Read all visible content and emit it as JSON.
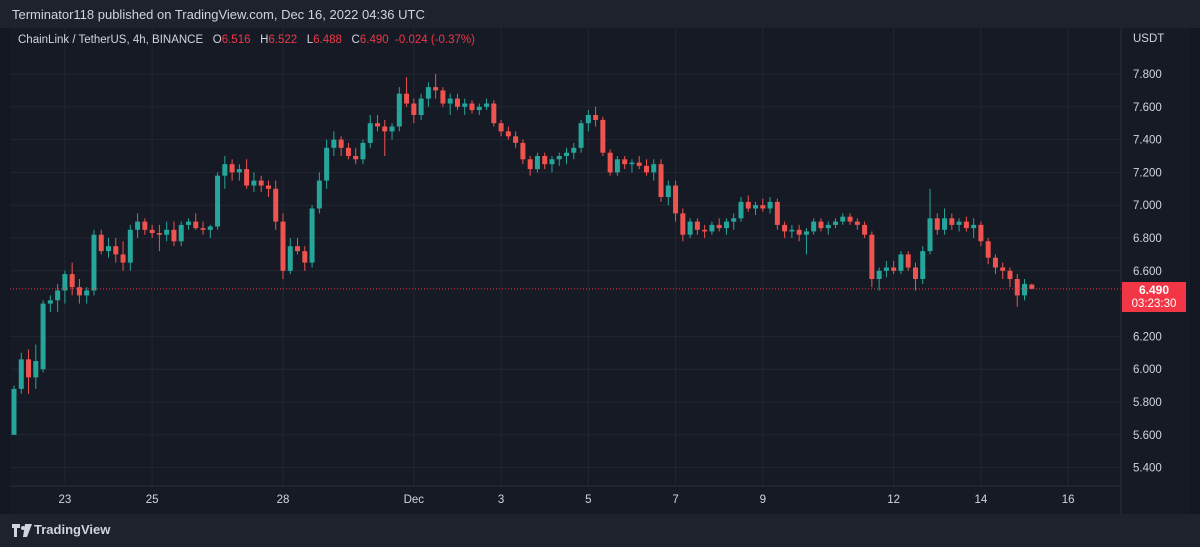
{
  "header": {
    "published": "Terminator118 published on TradingView.com, Dec 16, 2022 04:36 UTC"
  },
  "legend": {
    "symbol": "ChainLink / TetherUS, 4h, BINANCE",
    "o_label": "O",
    "o_value": "6.516",
    "h_label": "H",
    "h_value": "6.522",
    "l_label": "L",
    "l_value": "6.488",
    "c_label": "C",
    "c_value": "6.490",
    "change": "-0.024 (-0.37%)"
  },
  "price_badge": {
    "price": "6.490",
    "countdown": "03:23:30"
  },
  "footer": {
    "brand": "TradingView"
  },
  "colors": {
    "up": "#26a69a",
    "down": "#ef5350",
    "background": "#161a25",
    "grid": "#222633",
    "badge": "#f23645"
  },
  "chart_data": {
    "type": "candlestick",
    "title": "ChainLink / TetherUS, 4h, BINANCE",
    "ylabel": "USDT",
    "ylim": [
      5.3,
      7.95
    ],
    "y_ticks": [
      "7.800",
      "7.600",
      "7.400",
      "7.200",
      "7.000",
      "6.800",
      "6.600",
      "6.200",
      "6.000",
      "5.800",
      "5.600",
      "5.400"
    ],
    "x_tick_labels": [
      {
        "label": "23",
        "index": 7
      },
      {
        "label": "25",
        "index": 19
      },
      {
        "label": "28",
        "index": 37
      },
      {
        "label": "Dec",
        "index": 55
      },
      {
        "label": "3",
        "index": 67
      },
      {
        "label": "5",
        "index": 79
      },
      {
        "label": "7",
        "index": 91
      },
      {
        "label": "9",
        "index": 103
      },
      {
        "label": "12",
        "index": 121
      },
      {
        "label": "14",
        "index": 133
      },
      {
        "label": "16",
        "index": 145
      }
    ],
    "last_price": 6.49,
    "candles": [
      [
        5.6,
        5.9,
        5.6,
        5.88
      ],
      [
        5.88,
        6.1,
        5.85,
        6.06
      ],
      [
        6.06,
        6.12,
        5.85,
        5.95
      ],
      [
        5.95,
        6.15,
        5.88,
        6.05
      ],
      [
        6.0,
        6.42,
        5.98,
        6.4
      ],
      [
        6.4,
        6.45,
        6.35,
        6.42
      ],
      [
        6.42,
        6.52,
        6.35,
        6.48
      ],
      [
        6.48,
        6.6,
        6.4,
        6.58
      ],
      [
        6.58,
        6.65,
        6.45,
        6.5
      ],
      [
        6.5,
        6.55,
        6.4,
        6.45
      ],
      [
        6.45,
        6.5,
        6.4,
        6.48
      ],
      [
        6.48,
        6.85,
        6.45,
        6.82
      ],
      [
        6.82,
        6.85,
        6.7,
        6.72
      ],
      [
        6.72,
        6.8,
        6.68,
        6.75
      ],
      [
        6.75,
        6.8,
        6.65,
        6.7
      ],
      [
        6.7,
        6.78,
        6.6,
        6.65
      ],
      [
        6.65,
        6.88,
        6.6,
        6.85
      ],
      [
        6.85,
        6.95,
        6.8,
        6.9
      ],
      [
        6.9,
        6.92,
        6.82,
        6.85
      ],
      [
        6.85,
        6.88,
        6.8,
        6.83
      ],
      [
        6.83,
        6.88,
        6.72,
        6.82
      ],
      [
        6.82,
        6.9,
        6.78,
        6.85
      ],
      [
        6.85,
        6.9,
        6.75,
        6.78
      ],
      [
        6.78,
        6.9,
        6.75,
        6.88
      ],
      [
        6.88,
        6.92,
        6.85,
        6.9
      ],
      [
        6.9,
        6.95,
        6.85,
        6.86
      ],
      [
        6.86,
        6.9,
        6.82,
        6.85
      ],
      [
        6.85,
        6.88,
        6.8,
        6.87
      ],
      [
        6.87,
        7.2,
        6.85,
        7.18
      ],
      [
        7.18,
        7.3,
        7.1,
        7.25
      ],
      [
        7.25,
        7.28,
        7.15,
        7.2
      ],
      [
        7.2,
        7.25,
        7.15,
        7.22
      ],
      [
        7.22,
        7.28,
        7.1,
        7.12
      ],
      [
        7.12,
        7.2,
        7.08,
        7.15
      ],
      [
        7.15,
        7.18,
        7.08,
        7.12
      ],
      [
        7.12,
        7.15,
        7.05,
        7.1
      ],
      [
        7.1,
        7.15,
        6.85,
        6.9
      ],
      [
        6.9,
        6.95,
        6.55,
        6.6
      ],
      [
        6.6,
        6.8,
        6.58,
        6.75
      ],
      [
        6.75,
        6.8,
        6.7,
        6.72
      ],
      [
        6.72,
        6.75,
        6.6,
        6.65
      ],
      [
        6.65,
        7.0,
        6.62,
        6.98
      ],
      [
        6.98,
        7.2,
        6.95,
        7.15
      ],
      [
        7.15,
        7.4,
        7.1,
        7.35
      ],
      [
        7.35,
        7.45,
        7.3,
        7.4
      ],
      [
        7.4,
        7.42,
        7.3,
        7.35
      ],
      [
        7.35,
        7.38,
        7.28,
        7.3
      ],
      [
        7.3,
        7.35,
        7.25,
        7.28
      ],
      [
        7.28,
        7.4,
        7.25,
        7.38
      ],
      [
        7.38,
        7.55,
        7.35,
        7.5
      ],
      [
        7.5,
        7.55,
        7.45,
        7.48
      ],
      [
        7.48,
        7.52,
        7.3,
        7.45
      ],
      [
        7.45,
        7.5,
        7.4,
        7.48
      ],
      [
        7.48,
        7.72,
        7.45,
        7.68
      ],
      [
        7.68,
        7.78,
        7.6,
        7.62
      ],
      [
        7.62,
        7.65,
        7.5,
        7.55
      ],
      [
        7.55,
        7.68,
        7.52,
        7.65
      ],
      [
        7.65,
        7.75,
        7.6,
        7.72
      ],
      [
        7.72,
        7.8,
        7.65,
        7.7
      ],
      [
        7.7,
        7.72,
        7.6,
        7.62
      ],
      [
        7.62,
        7.68,
        7.55,
        7.65
      ],
      [
        7.65,
        7.68,
        7.58,
        7.6
      ],
      [
        7.6,
        7.65,
        7.55,
        7.62
      ],
      [
        7.62,
        7.64,
        7.56,
        7.58
      ],
      [
        7.58,
        7.62,
        7.55,
        7.6
      ],
      [
        7.6,
        7.65,
        7.58,
        7.62
      ],
      [
        7.62,
        7.64,
        7.48,
        7.5
      ],
      [
        7.5,
        7.52,
        7.42,
        7.45
      ],
      [
        7.45,
        7.48,
        7.4,
        7.42
      ],
      [
        7.42,
        7.45,
        7.35,
        7.38
      ],
      [
        7.38,
        7.4,
        7.25,
        7.28
      ],
      [
        7.28,
        7.3,
        7.18,
        7.22
      ],
      [
        7.22,
        7.32,
        7.2,
        7.3
      ],
      [
        7.3,
        7.32,
        7.22,
        7.25
      ],
      [
        7.25,
        7.3,
        7.2,
        7.28
      ],
      [
        7.28,
        7.32,
        7.24,
        7.3
      ],
      [
        7.3,
        7.35,
        7.25,
        7.32
      ],
      [
        7.32,
        7.38,
        7.28,
        7.35
      ],
      [
        7.35,
        7.52,
        7.32,
        7.5
      ],
      [
        7.5,
        7.58,
        7.45,
        7.55
      ],
      [
        7.55,
        7.6,
        7.48,
        7.52
      ],
      [
        7.52,
        7.54,
        7.3,
        7.32
      ],
      [
        7.32,
        7.34,
        7.18,
        7.2
      ],
      [
        7.2,
        7.3,
        7.18,
        7.28
      ],
      [
        7.28,
        7.3,
        7.22,
        7.25
      ],
      [
        7.25,
        7.28,
        7.2,
        7.26
      ],
      [
        7.26,
        7.3,
        7.22,
        7.24
      ],
      [
        7.24,
        7.28,
        7.18,
        7.2
      ],
      [
        7.2,
        7.28,
        7.15,
        7.25
      ],
      [
        7.25,
        7.28,
        7.02,
        7.05
      ],
      [
        7.05,
        7.15,
        7.0,
        7.12
      ],
      [
        7.12,
        7.15,
        6.9,
        6.95
      ],
      [
        6.95,
        6.98,
        6.78,
        6.82
      ],
      [
        6.82,
        6.92,
        6.8,
        6.9
      ],
      [
        6.9,
        6.92,
        6.82,
        6.85
      ],
      [
        6.85,
        6.88,
        6.8,
        6.84
      ],
      [
        6.84,
        6.9,
        6.82,
        6.88
      ],
      [
        6.88,
        6.92,
        6.84,
        6.86
      ],
      [
        6.86,
        6.92,
        6.82,
        6.9
      ],
      [
        6.9,
        6.95,
        6.85,
        6.92
      ],
      [
        6.92,
        7.05,
        6.9,
        7.02
      ],
      [
        7.02,
        7.06,
        6.96,
        6.98
      ],
      [
        6.98,
        7.02,
        6.94,
        7.0
      ],
      [
        7.0,
        7.04,
        6.96,
        6.98
      ],
      [
        6.98,
        7.05,
        6.95,
        7.02
      ],
      [
        7.02,
        7.04,
        6.85,
        6.88
      ],
      [
        6.88,
        6.9,
        6.8,
        6.84
      ],
      [
        6.84,
        6.88,
        6.8,
        6.85
      ],
      [
        6.85,
        6.88,
        6.78,
        6.82
      ],
      [
        6.82,
        6.86,
        6.7,
        6.84
      ],
      [
        6.84,
        6.92,
        6.82,
        6.9
      ],
      [
        6.9,
        6.92,
        6.84,
        6.86
      ],
      [
        6.86,
        6.9,
        6.82,
        6.88
      ],
      [
        6.88,
        6.92,
        6.86,
        6.9
      ],
      [
        6.9,
        6.95,
        6.88,
        6.93
      ],
      [
        6.93,
        6.95,
        6.88,
        6.9
      ],
      [
        6.9,
        6.92,
        6.85,
        6.88
      ],
      [
        6.88,
        6.9,
        6.8,
        6.82
      ],
      [
        6.82,
        6.84,
        6.5,
        6.55
      ],
      [
        6.55,
        6.62,
        6.48,
        6.6
      ],
      [
        6.6,
        6.66,
        6.56,
        6.62
      ],
      [
        6.62,
        6.66,
        6.58,
        6.6
      ],
      [
        6.6,
        6.72,
        6.58,
        6.7
      ],
      [
        6.7,
        6.72,
        6.6,
        6.62
      ],
      [
        6.62,
        6.65,
        6.48,
        6.55
      ],
      [
        6.55,
        6.75,
        6.52,
        6.72
      ],
      [
        6.72,
        7.1,
        6.7,
        6.92
      ],
      [
        6.92,
        6.95,
        6.82,
        6.85
      ],
      [
        6.85,
        6.98,
        6.82,
        6.92
      ],
      [
        6.92,
        6.95,
        6.85,
        6.88
      ],
      [
        6.88,
        6.92,
        6.84,
        6.9
      ],
      [
        6.9,
        6.93,
        6.84,
        6.86
      ],
      [
        6.86,
        6.92,
        6.8,
        6.88
      ],
      [
        6.88,
        6.9,
        6.75,
        6.78
      ],
      [
        6.78,
        6.8,
        6.64,
        6.68
      ],
      [
        6.68,
        6.7,
        6.58,
        6.62
      ],
      [
        6.62,
        6.65,
        6.55,
        6.6
      ],
      [
        6.6,
        6.62,
        6.5,
        6.55
      ],
      [
        6.55,
        6.58,
        6.38,
        6.45
      ],
      [
        6.45,
        6.55,
        6.42,
        6.52
      ],
      [
        6.516,
        6.522,
        6.488,
        6.49
      ]
    ]
  }
}
